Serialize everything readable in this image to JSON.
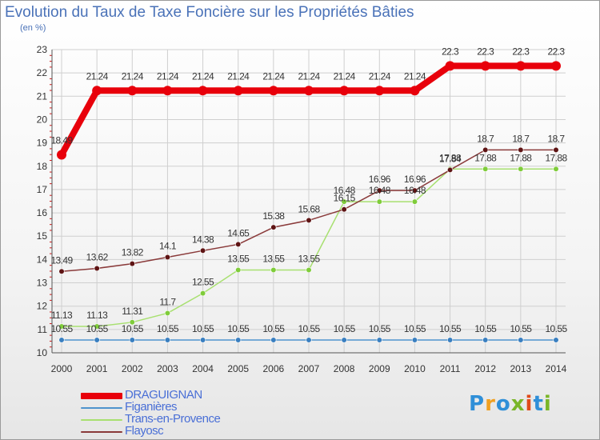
{
  "title": "Evolution du Taux de Taxe Foncière sur les Propriétés Bâties",
  "subtitle": "(en %)",
  "logo": {
    "text": "Proxiti",
    "colors": [
      "#2f8fd8",
      "#f0a020",
      "#2f8fd8",
      "#7ab628",
      "#e04a1a",
      "#2f8fd8",
      "#7ab628"
    ]
  },
  "chart_data": {
    "type": "line",
    "title": "Evolution du Taux de Taxe Foncière sur les Propriétés Bâties",
    "ylabel": "(en %)",
    "categories": [
      "2000",
      "2001",
      "2002",
      "2003",
      "2004",
      "2005",
      "2006",
      "2007",
      "2008",
      "2009",
      "2010",
      "2011",
      "2012",
      "2013",
      "2014"
    ],
    "ylim": [
      10,
      23
    ],
    "yticks": [
      "10",
      "11",
      "12",
      "13",
      "14",
      "15",
      "16",
      "17",
      "18",
      "19",
      "20",
      "21",
      "22",
      "23"
    ],
    "legend_position": "bottom-left",
    "series": [
      {
        "name": "DRAGUIGNAN",
        "color": "#e8000b",
        "emphasis": true,
        "values": [
          18.49,
          21.24,
          21.24,
          21.24,
          21.24,
          21.24,
          21.24,
          21.24,
          21.24,
          21.24,
          21.24,
          22.3,
          22.3,
          22.3,
          22.3
        ],
        "labels": [
          "18.49",
          "21.24",
          "21.24",
          "21.24",
          "21.24",
          "21.24",
          "21.24",
          "21.24",
          "21.24",
          "21.24",
          "21.24",
          "22.3",
          "22.3",
          "22.3",
          "22.3"
        ]
      },
      {
        "name": "Figanières",
        "color": "#4f94cd",
        "point": "#3a7fc0",
        "values": [
          10.55,
          10.55,
          10.55,
          10.55,
          10.55,
          10.55,
          10.55,
          10.55,
          10.55,
          10.55,
          10.55,
          10.55,
          10.55,
          10.55,
          10.55
        ],
        "labels": [
          "10.55",
          "10.55",
          "10.55",
          "10.55",
          "10.55",
          "10.55",
          "10.55",
          "10.55",
          "10.55",
          "10.55",
          "10.55",
          "10.55",
          "10.55",
          "10.55",
          "10.55"
        ]
      },
      {
        "name": "Trans-en-Provence",
        "color": "#a8e070",
        "point": "#7fcc3a",
        "values": [
          11.13,
          11.13,
          11.31,
          11.7,
          12.55,
          13.55,
          13.55,
          13.55,
          16.48,
          16.48,
          16.48,
          17.88,
          17.88,
          17.88,
          17.88
        ],
        "labels": [
          "11.13",
          "11.13",
          "11.31",
          "11.7",
          "12.55",
          "13.55",
          "13.55",
          "13.55",
          "16.48",
          "16.48",
          "16.48",
          "17.88",
          "17.88",
          "17.88",
          "17.88"
        ]
      },
      {
        "name": "Flayosc",
        "color": "#8a3a3a",
        "point": "#5e1414",
        "values": [
          13.49,
          13.62,
          13.82,
          14.1,
          14.38,
          14.65,
          15.38,
          15.68,
          16.15,
          16.96,
          16.96,
          17.84,
          18.7,
          18.7,
          18.7
        ],
        "labels": [
          "13.49",
          "13.62",
          "13.82",
          "14.1",
          "14.38",
          "14.65",
          "15.38",
          "15.68",
          "16.15",
          "16.96",
          "16.96",
          "17.84",
          "18.7",
          "18.7",
          "18.7"
        ]
      }
    ]
  }
}
